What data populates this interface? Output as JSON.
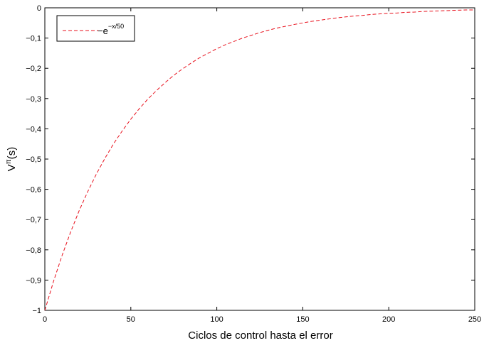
{
  "chart_data": {
    "type": "line",
    "title": "",
    "xlabel": "Ciclos de control hasta el error",
    "ylabel_main": "V",
    "ylabel_sup": "π",
    "ylabel_tail": "(s)",
    "xlim": [
      0,
      250
    ],
    "ylim": [
      -1,
      0
    ],
    "x_ticks": [
      0,
      50,
      100,
      150,
      200,
      250
    ],
    "x_tick_labels": [
      "0",
      "50",
      "100",
      "150",
      "200",
      "250"
    ],
    "y_ticks": [
      0,
      -0.1,
      -0.2,
      -0.3,
      -0.4,
      -0.5,
      -0.6,
      -0.7,
      -0.8,
      -0.9,
      -1
    ],
    "y_tick_labels": [
      "0",
      "−0,1",
      "−0,2",
      "−0,3",
      "−0,4",
      "−0,5",
      "−0,6",
      "−0,7",
      "−0,8",
      "−0,9",
      "−1"
    ],
    "grid": false,
    "legend_position": "top-left",
    "series": [
      {
        "name_main": "−e",
        "name_sup": "−x/50",
        "color": "#e8101c",
        "dash": "dashed",
        "x": [
          0,
          5,
          10,
          15,
          20,
          25,
          30,
          35,
          40,
          45,
          50,
          55,
          60,
          65,
          70,
          75,
          80,
          85,
          90,
          95,
          100,
          105,
          110,
          115,
          120,
          125,
          130,
          135,
          140,
          145,
          150,
          155,
          160,
          165,
          170,
          175,
          180,
          185,
          190,
          195,
          200,
          205,
          210,
          215,
          220,
          225,
          230,
          235,
          240,
          245,
          250
        ],
        "y": [
          -1.0,
          -0.905,
          -0.819,
          -0.741,
          -0.67,
          -0.607,
          -0.549,
          -0.497,
          -0.449,
          -0.407,
          -0.368,
          -0.333,
          -0.301,
          -0.273,
          -0.247,
          -0.223,
          -0.202,
          -0.183,
          -0.165,
          -0.15,
          -0.135,
          -0.122,
          -0.111,
          -0.1,
          -0.091,
          -0.082,
          -0.074,
          -0.067,
          -0.061,
          -0.055,
          -0.05,
          -0.045,
          -0.041,
          -0.037,
          -0.033,
          -0.03,
          -0.027,
          -0.025,
          -0.022,
          -0.02,
          -0.018,
          -0.017,
          -0.015,
          -0.014,
          -0.012,
          -0.011,
          -0.01,
          -0.009,
          -0.008,
          -0.007,
          -0.007
        ]
      }
    ]
  }
}
